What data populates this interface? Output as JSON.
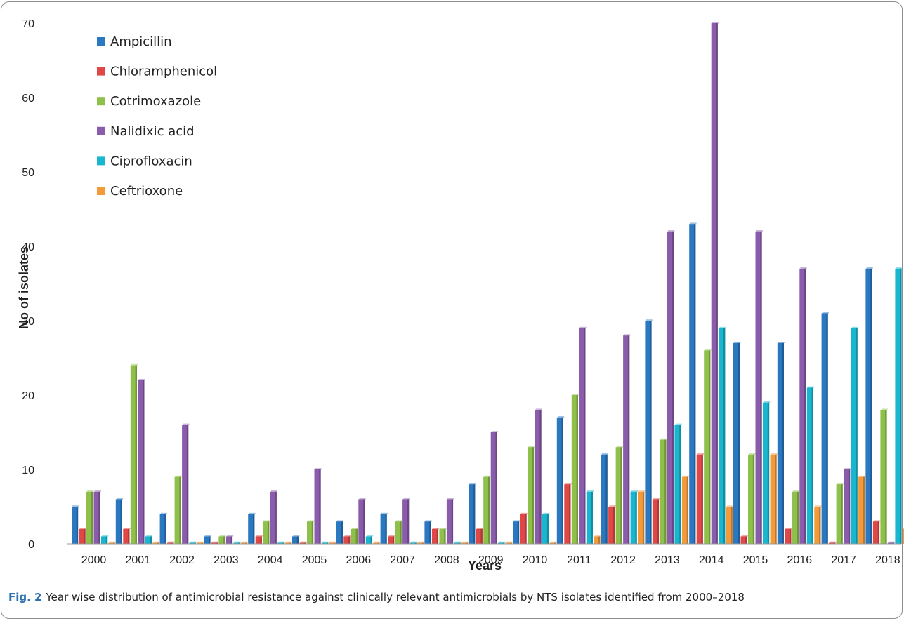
{
  "caption": {
    "label": "Fig. 2",
    "text": "Year wise distribution of antimicrobial resistance against clinically relevant antimicrobials by NTS isolates identified from 2000–2018"
  },
  "chart_data": {
    "type": "bar",
    "xlabel": "Years",
    "ylabel": "No of isolates",
    "ylim": [
      0,
      70
    ],
    "yticks": [
      0,
      10,
      20,
      30,
      40,
      50,
      60,
      70
    ],
    "grid": false,
    "legend_position": "top-left",
    "categories": [
      "2000",
      "2001",
      "2002",
      "2003",
      "2004",
      "2005",
      "2006",
      "2007",
      "2008",
      "2009",
      "2010",
      "2011",
      "2012",
      "2013",
      "2014",
      "2015",
      "2016",
      "2017",
      "2018"
    ],
    "series": [
      {
        "name": "Ampicillin",
        "color": "#2a78c2",
        "values": [
          5,
          6,
          4,
          1,
          4,
          1,
          3,
          4,
          3,
          8,
          3,
          17,
          12,
          30,
          43,
          27,
          27,
          31,
          37
        ]
      },
      {
        "name": "Chloramphenicol",
        "color": "#e04848",
        "values": [
          2,
          2,
          0,
          0,
          1,
          0,
          1,
          1,
          2,
          2,
          4,
          8,
          5,
          6,
          12,
          1,
          2,
          0,
          3
        ]
      },
      {
        "name": "Cotrimoxazole",
        "color": "#8fc04a",
        "values": [
          7,
          24,
          9,
          1,
          3,
          3,
          2,
          3,
          2,
          9,
          13,
          20,
          13,
          14,
          26,
          12,
          7,
          8,
          18
        ]
      },
      {
        "name": "Nalidixic acid",
        "color": "#8a5cab",
        "values": [
          7,
          22,
          16,
          1,
          7,
          10,
          6,
          6,
          6,
          15,
          18,
          29,
          28,
          42,
          70,
          42,
          37,
          10,
          0
        ]
      },
      {
        "name": "Ciprofloxacin",
        "color": "#19b6cf",
        "values": [
          1,
          1,
          0,
          0,
          0,
          0,
          1,
          0,
          0,
          0,
          4,
          7,
          7,
          16,
          29,
          19,
          21,
          29,
          37
        ]
      },
      {
        "name": "Ceftrioxone",
        "color": "#f39a3a",
        "values": [
          0,
          0,
          0,
          0,
          0,
          0,
          0,
          0,
          0,
          0,
          0,
          1,
          7,
          9,
          5,
          12,
          5,
          9,
          2
        ]
      }
    ]
  }
}
